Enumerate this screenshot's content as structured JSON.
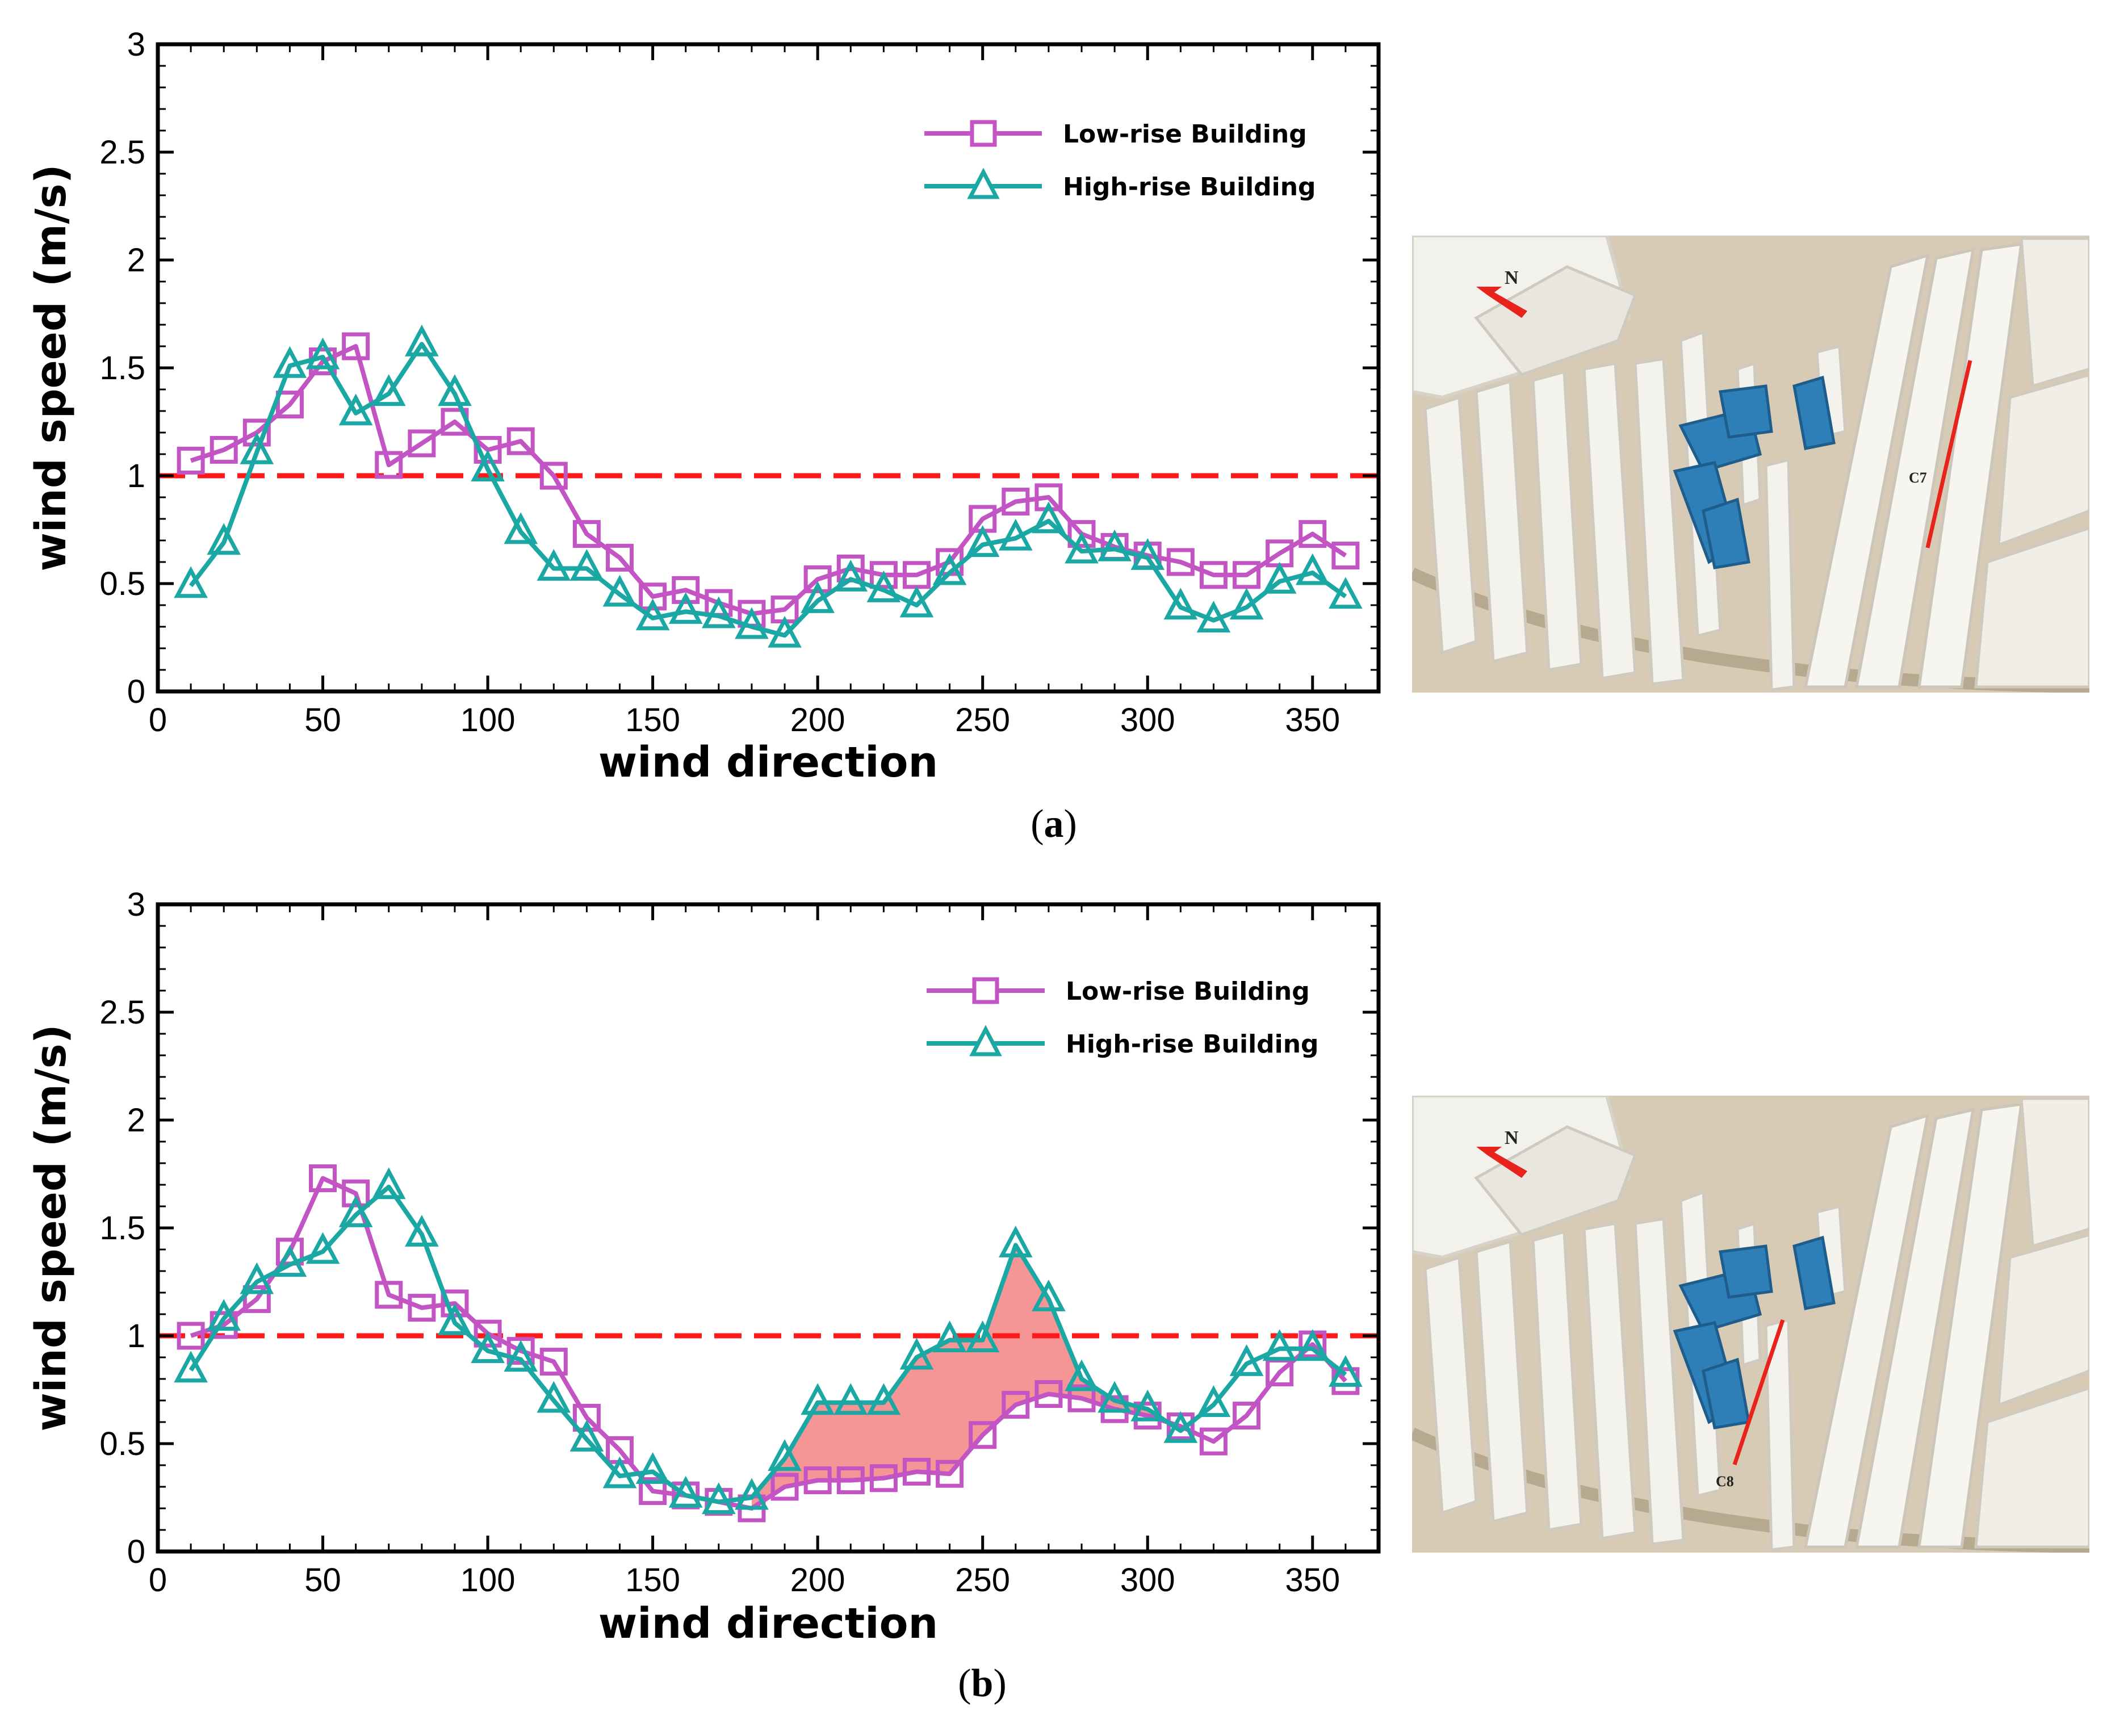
{
  "colors": {
    "low_rise": "#C354C3",
    "high_rise": "#1BA8A4",
    "threshold": "#FF1A1A",
    "fill": "#F48A8A",
    "building_white": "#F3F1EC",
    "building_blue": "#2E7FB8",
    "ground": "#D8CBB5",
    "north_arrow": "#E8231C",
    "line_marker": "#E8231C"
  },
  "chart_data": [
    {
      "id": "a",
      "type": "line",
      "caption_letter": "a",
      "xlabel": "wind direction",
      "ylabel": "wind speed (m/s)",
      "xlim": [
        0,
        370
      ],
      "ylim": [
        0,
        3
      ],
      "xticks": [
        "0",
        "50",
        "100",
        "150",
        "200",
        "250",
        "300",
        "350"
      ],
      "yticks": [
        "0",
        "0.5",
        "1",
        "1.5",
        "2",
        "2.5",
        "3"
      ],
      "threshold": 1.0,
      "x": [
        10,
        20,
        30,
        40,
        50,
        60,
        70,
        80,
        90,
        100,
        110,
        120,
        130,
        140,
        150,
        160,
        170,
        180,
        190,
        200,
        210,
        220,
        230,
        240,
        250,
        260,
        270,
        280,
        290,
        300,
        310,
        320,
        330,
        340,
        350,
        360
      ],
      "series": [
        {
          "name": "Low-rise Building",
          "marker": "square",
          "values": [
            1.07,
            1.12,
            1.2,
            1.33,
            1.53,
            1.6,
            1.05,
            1.15,
            1.25,
            1.12,
            1.16,
            1.0,
            0.73,
            0.62,
            0.44,
            0.47,
            0.41,
            0.36,
            0.38,
            0.52,
            0.57,
            0.54,
            0.54,
            0.6,
            0.8,
            0.88,
            0.9,
            0.73,
            0.67,
            0.63,
            0.6,
            0.54,
            0.54,
            0.64,
            0.73,
            0.63
          ]
        },
        {
          "name": "High-rise Building",
          "marker": "triangle",
          "values": [
            0.49,
            0.69,
            1.11,
            1.51,
            1.55,
            1.29,
            1.38,
            1.61,
            1.38,
            1.03,
            0.74,
            0.57,
            0.57,
            0.45,
            0.34,
            0.37,
            0.35,
            0.3,
            0.26,
            0.42,
            0.52,
            0.47,
            0.4,
            0.55,
            0.68,
            0.71,
            0.79,
            0.65,
            0.66,
            0.62,
            0.39,
            0.33,
            0.39,
            0.51,
            0.55,
            0.44
          ]
        }
      ],
      "photo_label": "C7",
      "north_label": "N"
    },
    {
      "id": "b",
      "type": "line",
      "caption_letter": "b",
      "xlabel": "wind direction",
      "ylabel": "wind speed (m/s)",
      "xlim": [
        0,
        370
      ],
      "ylim": [
        0,
        3
      ],
      "xticks": [
        "0",
        "50",
        "100",
        "150",
        "200",
        "250",
        "300",
        "350"
      ],
      "yticks": [
        "0",
        "0.5",
        "1",
        "1.5",
        "2",
        "2.5",
        "3"
      ],
      "threshold": 1.0,
      "shade_range": [
        180,
        310
      ],
      "x": [
        10,
        20,
        30,
        40,
        50,
        60,
        70,
        80,
        90,
        100,
        110,
        120,
        130,
        140,
        150,
        160,
        170,
        180,
        190,
        200,
        210,
        220,
        230,
        240,
        250,
        260,
        270,
        280,
        290,
        300,
        310,
        320,
        330,
        340,
        350,
        360
      ],
      "series": [
        {
          "name": "Low-rise Building",
          "marker": "square",
          "values": [
            1.0,
            1.05,
            1.17,
            1.39,
            1.73,
            1.66,
            1.19,
            1.13,
            1.15,
            1.01,
            0.93,
            0.88,
            0.62,
            0.47,
            0.28,
            0.26,
            0.23,
            0.2,
            0.3,
            0.33,
            0.33,
            0.34,
            0.37,
            0.36,
            0.54,
            0.68,
            0.73,
            0.71,
            0.66,
            0.63,
            0.58,
            0.51,
            0.63,
            0.83,
            0.96,
            0.79
          ]
        },
        {
          "name": "High-rise Building",
          "marker": "triangle",
          "values": [
            0.84,
            1.08,
            1.25,
            1.33,
            1.39,
            1.56,
            1.69,
            1.47,
            1.06,
            0.93,
            0.89,
            0.7,
            0.52,
            0.35,
            0.37,
            0.26,
            0.23,
            0.25,
            0.43,
            0.69,
            0.69,
            0.69,
            0.9,
            0.98,
            0.98,
            1.42,
            1.17,
            0.8,
            0.7,
            0.66,
            0.56,
            0.68,
            0.87,
            0.94,
            0.94,
            0.82
          ]
        }
      ],
      "photo_label": "C8",
      "north_label": "N"
    }
  ]
}
